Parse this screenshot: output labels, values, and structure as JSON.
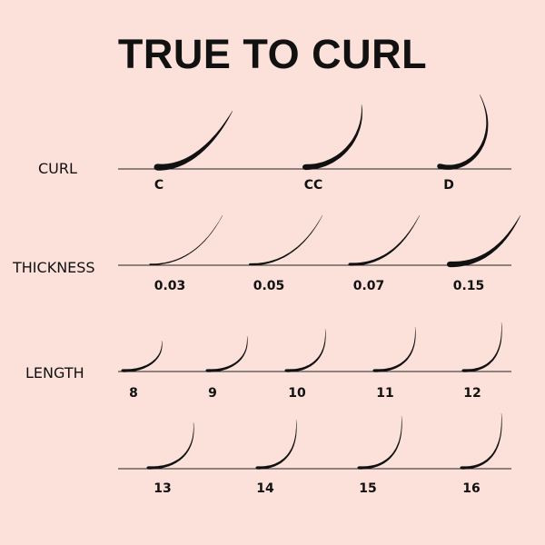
{
  "title": "TRUE TO CURL",
  "rows": {
    "curl": {
      "label": "CURL",
      "items": [
        "C",
        "CC",
        "D"
      ]
    },
    "thickness": {
      "label": "THICKNESS",
      "items": [
        "0.03",
        "0.05",
        "0.07",
        "0.15"
      ]
    },
    "length": {
      "label": "LENGTH",
      "items": [
        "8",
        "9",
        "10",
        "11",
        "12",
        "13",
        "14",
        "15",
        "16"
      ]
    }
  },
  "colors": {
    "background": "#fbe1d9",
    "ink": "#111111"
  }
}
